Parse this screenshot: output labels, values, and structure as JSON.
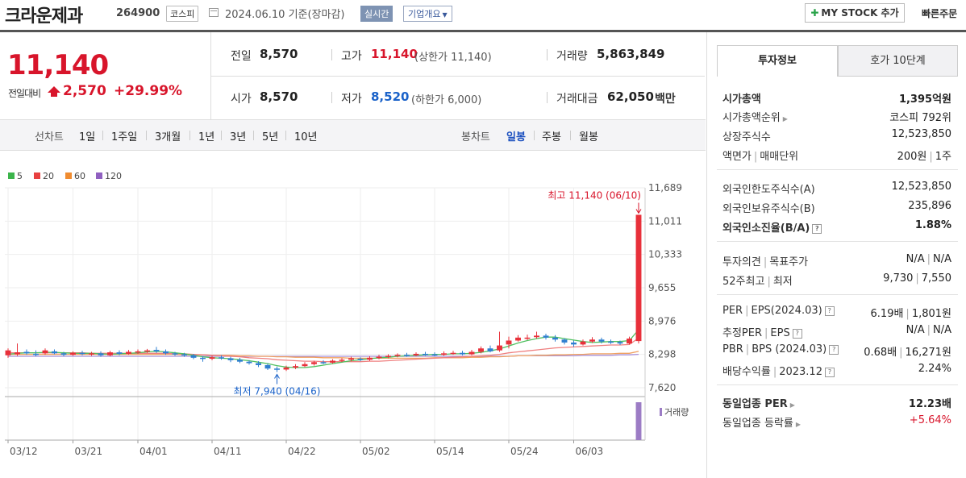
{
  "header": {
    "stock_name": "크라운제과",
    "stock_code": "264900",
    "market": "코스피",
    "basis": "2024.06.10  기준(장마감)",
    "realtime": "실시간",
    "company_overview": "기업개요",
    "mystock_label": "MY STOCK 추가",
    "quick_order": "빠른주문"
  },
  "price": {
    "current": "11,140",
    "vs_label": "전일대비",
    "change": "2,570",
    "change_rate": "+29.99%"
  },
  "stats": {
    "prev_label": "전일",
    "prev_value": "8,570",
    "high_label": "고가",
    "high_value": "11,140",
    "high_sub": "(상한가 11,140)",
    "volume_label": "거래량",
    "volume_value": "5,863,849",
    "open_label": "시가",
    "open_value": "8,570",
    "low_label": "저가",
    "low_value": "8,520",
    "low_sub": "(하한가 6,000)",
    "amount_label": "거래대금",
    "amount_value": "62,050",
    "amount_unit": "백만"
  },
  "periods": {
    "line_label": "선차트",
    "line_items": [
      "1일",
      "1주일",
      "3개월",
      "1년",
      "3년",
      "5년",
      "10년"
    ],
    "candle_label": "봉차트",
    "candle_items": [
      "일봉",
      "주봉",
      "월봉"
    ],
    "active_candle": "일봉"
  },
  "legend": [
    {
      "label": "5",
      "color": "#3cb44b"
    },
    {
      "label": "20",
      "color": "#e84040"
    },
    {
      "label": "60",
      "color": "#f08c30"
    },
    {
      "label": "120",
      "color": "#9060c0"
    }
  ],
  "chart_data": {
    "type": "candlestick",
    "y_ticks": [
      "11,689",
      "11,011",
      "10,333",
      "9,655",
      "8,976",
      "8,298",
      "7,620"
    ],
    "ylim": [
      7620,
      11689
    ],
    "x_ticks": [
      "03/12",
      "03/21",
      "04/01",
      "04/11",
      "04/22",
      "05/02",
      "05/14",
      "05/24",
      "06/03"
    ],
    "high_annotation": "최고 11,140 (06/10)",
    "low_annotation": "최저 7,940 (04/16)",
    "volume_label": "거래량",
    "up_color": "#e8303a",
    "down_color": "#2f7fd0",
    "candles": [
      {
        "o": 8280,
        "c": 8380,
        "h": 8420,
        "l": 8230
      },
      {
        "o": 8300,
        "c": 8340,
        "h": 8520,
        "l": 8270
      },
      {
        "o": 8350,
        "c": 8320,
        "h": 8400,
        "l": 8290
      },
      {
        "o": 8310,
        "c": 8300,
        "h": 8380,
        "l": 8260
      },
      {
        "o": 8320,
        "c": 8380,
        "h": 8420,
        "l": 8290
      },
      {
        "o": 8360,
        "c": 8320,
        "h": 8400,
        "l": 8300
      },
      {
        "o": 8320,
        "c": 8290,
        "h": 8350,
        "l": 8260
      },
      {
        "o": 8290,
        "c": 8330,
        "h": 8360,
        "l": 8270
      },
      {
        "o": 8330,
        "c": 8310,
        "h": 8370,
        "l": 8280
      },
      {
        "o": 8300,
        "c": 8320,
        "h": 8350,
        "l": 8270
      },
      {
        "o": 8320,
        "c": 8280,
        "h": 8360,
        "l": 8250
      },
      {
        "o": 8280,
        "c": 8340,
        "h": 8370,
        "l": 8260
      },
      {
        "o": 8340,
        "c": 8310,
        "h": 8380,
        "l": 8280
      },
      {
        "o": 8310,
        "c": 8350,
        "h": 8390,
        "l": 8290
      },
      {
        "o": 8340,
        "c": 8360,
        "h": 8400,
        "l": 8310
      },
      {
        "o": 8360,
        "c": 8380,
        "h": 8410,
        "l": 8330
      },
      {
        "o": 8390,
        "c": 8360,
        "h": 8450,
        "l": 8330
      },
      {
        "o": 8360,
        "c": 8320,
        "h": 8400,
        "l": 8290
      },
      {
        "o": 8320,
        "c": 8300,
        "h": 8350,
        "l": 8270
      },
      {
        "o": 8300,
        "c": 8280,
        "h": 8330,
        "l": 8250
      },
      {
        "o": 8280,
        "c": 8230,
        "h": 8310,
        "l": 8200
      },
      {
        "o": 8230,
        "c": 8210,
        "h": 8260,
        "l": 8150
      },
      {
        "o": 8210,
        "c": 8240,
        "h": 8270,
        "l": 8180
      },
      {
        "o": 8240,
        "c": 8220,
        "h": 8280,
        "l": 8190
      },
      {
        "o": 8220,
        "c": 8180,
        "h": 8250,
        "l": 8140
      },
      {
        "o": 8190,
        "c": 8150,
        "h": 8230,
        "l": 8120
      },
      {
        "o": 8150,
        "c": 8120,
        "h": 8180,
        "l": 8090
      },
      {
        "o": 8120,
        "c": 8080,
        "h": 8160,
        "l": 8040
      },
      {
        "o": 8080,
        "c": 8010,
        "h": 8110,
        "l": 7980
      },
      {
        "o": 8010,
        "c": 7990,
        "h": 8050,
        "l": 7940
      },
      {
        "o": 7990,
        "c": 8030,
        "h": 8070,
        "l": 7960
      },
      {
        "o": 8030,
        "c": 8060,
        "h": 8100,
        "l": 8000
      },
      {
        "o": 8060,
        "c": 8100,
        "h": 8140,
        "l": 8040
      },
      {
        "o": 8100,
        "c": 8140,
        "h": 8170,
        "l": 8070
      },
      {
        "o": 8140,
        "c": 8130,
        "h": 8180,
        "l": 8100
      },
      {
        "o": 8130,
        "c": 8170,
        "h": 8200,
        "l": 8110
      },
      {
        "o": 8170,
        "c": 8190,
        "h": 8220,
        "l": 8140
      },
      {
        "o": 8190,
        "c": 8220,
        "h": 8250,
        "l": 8160
      },
      {
        "o": 8210,
        "c": 8190,
        "h": 8240,
        "l": 8160
      },
      {
        "o": 8190,
        "c": 8230,
        "h": 8260,
        "l": 8170
      },
      {
        "o": 8230,
        "c": 8250,
        "h": 8290,
        "l": 8200
      },
      {
        "o": 8250,
        "c": 8270,
        "h": 8300,
        "l": 8220
      },
      {
        "o": 8270,
        "c": 8290,
        "h": 8320,
        "l": 8240
      },
      {
        "o": 8290,
        "c": 8280,
        "h": 8330,
        "l": 8250
      },
      {
        "o": 8280,
        "c": 8310,
        "h": 8340,
        "l": 8260
      },
      {
        "o": 8310,
        "c": 8300,
        "h": 8350,
        "l": 8270
      },
      {
        "o": 8300,
        "c": 8290,
        "h": 8340,
        "l": 8260
      },
      {
        "o": 8290,
        "c": 8320,
        "h": 8360,
        "l": 8270
      },
      {
        "o": 8320,
        "c": 8330,
        "h": 8370,
        "l": 8290
      },
      {
        "o": 8330,
        "c": 8300,
        "h": 8370,
        "l": 8280
      },
      {
        "o": 8300,
        "c": 8350,
        "h": 8390,
        "l": 8280
      },
      {
        "o": 8350,
        "c": 8420,
        "h": 8460,
        "l": 8320
      },
      {
        "o": 8420,
        "c": 8360,
        "h": 8480,
        "l": 8340
      },
      {
        "o": 8380,
        "c": 8480,
        "h": 8760,
        "l": 8350
      },
      {
        "o": 8500,
        "c": 8580,
        "h": 8660,
        "l": 8420
      },
      {
        "o": 8580,
        "c": 8640,
        "h": 8690,
        "l": 8560
      },
      {
        "o": 8630,
        "c": 8640,
        "h": 8700,
        "l": 8590
      },
      {
        "o": 8650,
        "c": 8680,
        "h": 8760,
        "l": 8620
      },
      {
        "o": 8680,
        "c": 8640,
        "h": 8720,
        "l": 8600
      },
      {
        "o": 8640,
        "c": 8600,
        "h": 8690,
        "l": 8560
      },
      {
        "o": 8600,
        "c": 8540,
        "h": 8630,
        "l": 8500
      },
      {
        "o": 8540,
        "c": 8500,
        "h": 8580,
        "l": 8450
      },
      {
        "o": 8500,
        "c": 8560,
        "h": 8600,
        "l": 8480
      },
      {
        "o": 8560,
        "c": 8600,
        "h": 8650,
        "l": 8530
      },
      {
        "o": 8600,
        "c": 8560,
        "h": 8640,
        "l": 8520
      },
      {
        "o": 8560,
        "c": 8550,
        "h": 8600,
        "l": 8510
      },
      {
        "o": 8550,
        "c": 8520,
        "h": 8580,
        "l": 8490
      },
      {
        "o": 8520,
        "c": 8620,
        "h": 8660,
        "l": 8500
      },
      {
        "o": 8570,
        "c": 11140,
        "h": 11140,
        "l": 8520
      }
    ],
    "ma5": [
      8300,
      8320,
      8330,
      8330,
      8340,
      8340,
      8330,
      8320,
      8320,
      8320,
      8310,
      8300,
      8310,
      8320,
      8330,
      8350,
      8360,
      8350,
      8330,
      8310,
      8280,
      8250,
      8230,
      8220,
      8210,
      8190,
      8170,
      8140,
      8110,
      8070,
      8040,
      8030,
      8030,
      8050,
      8080,
      8110,
      8140,
      8170,
      8190,
      8210,
      8230,
      8240,
      8260,
      8270,
      8280,
      8290,
      8300,
      8300,
      8310,
      8310,
      8320,
      8340,
      8370,
      8410,
      8470,
      8530,
      8580,
      8620,
      8650,
      8650,
      8620,
      8590,
      8560,
      8540,
      8550,
      8560,
      8560,
      8580,
      8800
    ],
    "ma20": [
      8330,
      8330,
      8330,
      8330,
      8330,
      8330,
      8330,
      8330,
      8330,
      8320,
      8320,
      8320,
      8320,
      8320,
      8320,
      8320,
      8320,
      8320,
      8310,
      8310,
      8300,
      8290,
      8280,
      8270,
      8260,
      8250,
      8230,
      8220,
      8210,
      8190,
      8180,
      8170,
      8160,
      8160,
      8150,
      8150,
      8150,
      8150,
      8150,
      8160,
      8160,
      8170,
      8180,
      8190,
      8200,
      8210,
      8220,
      8230,
      8240,
      8250,
      8260,
      8270,
      8280,
      8300,
      8330,
      8350,
      8370,
      8390,
      8410,
      8430,
      8440,
      8450,
      8460,
      8470,
      8480,
      8490,
      8490,
      8500,
      8630
    ],
    "ma60": [
      8300,
      8300,
      8300,
      8300,
      8300,
      8300,
      8300,
      8300,
      8300,
      8300,
      8300,
      8300,
      8300,
      8300,
      8300,
      8300,
      8300,
      8300,
      8300,
      8290,
      8290,
      8290,
      8280,
      8280,
      8280,
      8270,
      8270,
      8260,
      8260,
      8250,
      8250,
      8240,
      8240,
      8240,
      8230,
      8230,
      8230,
      8220,
      8220,
      8220,
      8220,
      8220,
      8220,
      8220,
      8220,
      8220,
      8230,
      8230,
      8230,
      8230,
      8240,
      8240,
      8250,
      8250,
      8260,
      8270,
      8270,
      8280,
      8280,
      8290,
      8290,
      8300,
      8300,
      8310,
      8310,
      8310,
      8320,
      8320,
      8360
    ],
    "ma120": [
      8260,
      8260,
      8260,
      8260,
      8260,
      8260,
      8260,
      8260,
      8260,
      8260,
      8260,
      8260,
      8260,
      8260,
      8260,
      8260,
      8260,
      8260,
      8260,
      8260,
      8260,
      8260,
      8260,
      8260,
      8260,
      8260,
      8260,
      8260,
      8260,
      8260,
      8260,
      8260,
      8260,
      8260,
      8260,
      8260,
      8260,
      8260,
      8260,
      8260,
      8260,
      8260,
      8260,
      8260,
      8260,
      8260,
      8260,
      8260,
      8260,
      8260,
      8260,
      8260,
      8260,
      8260,
      8260,
      8270,
      8270,
      8270,
      8270,
      8270,
      8270,
      8270,
      8280,
      8280,
      8280,
      8280,
      8290,
      8290,
      8300
    ],
    "volume": [
      0,
      0,
      0,
      0,
      0,
      0,
      0,
      0,
      0,
      0,
      0,
      0,
      0,
      0,
      0,
      0,
      0,
      0,
      0,
      0,
      0,
      0,
      0,
      0,
      0,
      0,
      0,
      0,
      0,
      0,
      0,
      0,
      0,
      0,
      0,
      0,
      0,
      0,
      0,
      0,
      0,
      0,
      0,
      0,
      0,
      0,
      0,
      0,
      0,
      0,
      0,
      0,
      0,
      0,
      0,
      0,
      0,
      0,
      0,
      0,
      0,
      0,
      0,
      0,
      0,
      0,
      0,
      0,
      5863849
    ]
  },
  "right_panel": {
    "tab_invest": "투자정보",
    "tab_orderbook": "호가 10단계",
    "market_cap_label": "시가총액",
    "market_cap_value": "1,395억원",
    "market_cap_rank_label": "시가총액순위",
    "market_cap_rank_value": "코스피 792위",
    "shares_label": "상장주식수",
    "shares_value": "12,523,850",
    "par_label": "액면가",
    "par_label2": "매매단위",
    "par_value": "200원",
    "unit_value": "1주",
    "foreign_limit_label": "외국인한도주식수(A)",
    "foreign_limit_value": "12,523,850",
    "foreign_hold_label": "외국인보유주식수(B)",
    "foreign_hold_value": "235,896",
    "foreign_ratio_label": "외국인소진율(B/A)",
    "foreign_ratio_value": "1.88%",
    "opinion_label": "투자의견",
    "target_label": "목표주가",
    "opinion_value": "N/A",
    "target_value": "N/A",
    "w52_label": "52주최고",
    "w52_low_label": "최저",
    "w52_high_value": "9,730",
    "w52_low_value": "7,550",
    "per_label": "PER",
    "eps_label": "EPS(2024.03)",
    "per_value": "6.19배",
    "eps_value": "1,801원",
    "est_per_label": "추정PER",
    "est_eps_label": "EPS",
    "est_per_value": "N/A",
    "est_eps_value": "N/A",
    "pbr_label": "PBR",
    "bps_label": "BPS (2024.03)",
    "pbr_value": "0.68배",
    "bps_value": "16,271원",
    "div_label": "배당수익률",
    "div_date": "2023.12",
    "div_value": "2.24%",
    "sector_per_label": "동일업종 PER",
    "sector_per_value": "12.23배",
    "sector_change_label": "동일업종 등락률",
    "sector_change_value": "+5.64%"
  }
}
